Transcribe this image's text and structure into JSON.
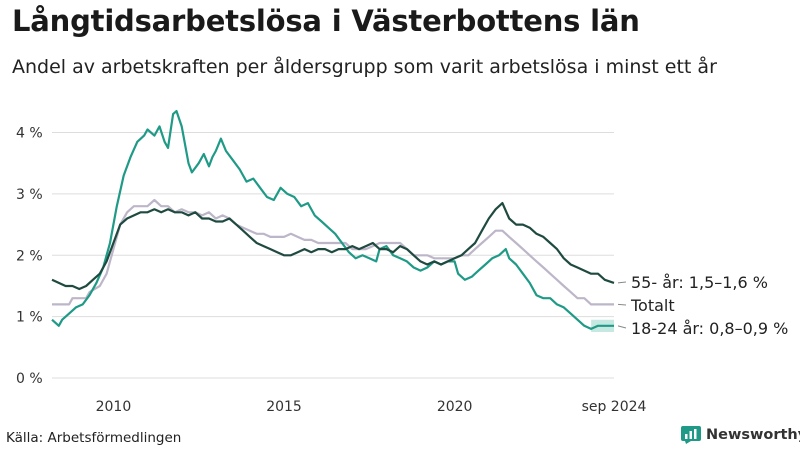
{
  "title": "Långtidsarbetslösa i Västerbottens län",
  "subtitle": "Andel av arbetskraften per åldersgrupp som varit arbetslösa i minst ett år",
  "source": "Källa: Arbetsförmedlingen",
  "brand": "Newsworthy",
  "colors": {
    "older": "#1f4a40",
    "total": "#bdb6c8",
    "young": "#1e9a86",
    "young_band": "#9fd8cd",
    "grid": "#dddddd",
    "brand": "#1e9a86"
  },
  "chart_data": {
    "type": "line",
    "x_unit": "year",
    "xlim": [
      2008.2,
      2024.67
    ],
    "ylim": [
      0,
      4.4
    ],
    "yticks": [
      0,
      1,
      2,
      3,
      4
    ],
    "ytick_labels": [
      "0 %",
      "1 %",
      "2 %",
      "3 %",
      "4 %"
    ],
    "xticks": [
      2010,
      2015,
      2020,
      2024.67
    ],
    "xtick_labels": [
      "2010",
      "2015",
      "2020",
      "sep 2024"
    ],
    "grid": true,
    "series": [
      {
        "key": "older",
        "end_label": "55- år: 1,5–1,6 %",
        "points": [
          [
            2008.2,
            1.6
          ],
          [
            2008.4,
            1.55
          ],
          [
            2008.6,
            1.5
          ],
          [
            2008.8,
            1.5
          ],
          [
            2009.0,
            1.45
          ],
          [
            2009.2,
            1.5
          ],
          [
            2009.4,
            1.6
          ],
          [
            2009.6,
            1.7
          ],
          [
            2009.8,
            1.9
          ],
          [
            2010.0,
            2.2
          ],
          [
            2010.2,
            2.5
          ],
          [
            2010.4,
            2.6
          ],
          [
            2010.6,
            2.65
          ],
          [
            2010.8,
            2.7
          ],
          [
            2011.0,
            2.7
          ],
          [
            2011.2,
            2.75
          ],
          [
            2011.4,
            2.7
          ],
          [
            2011.6,
            2.75
          ],
          [
            2011.8,
            2.7
          ],
          [
            2012.0,
            2.7
          ],
          [
            2012.2,
            2.65
          ],
          [
            2012.4,
            2.7
          ],
          [
            2012.6,
            2.6
          ],
          [
            2012.8,
            2.6
          ],
          [
            2013.0,
            2.55
          ],
          [
            2013.2,
            2.55
          ],
          [
            2013.4,
            2.6
          ],
          [
            2013.6,
            2.5
          ],
          [
            2013.8,
            2.4
          ],
          [
            2014.0,
            2.3
          ],
          [
            2014.2,
            2.2
          ],
          [
            2014.4,
            2.15
          ],
          [
            2014.6,
            2.1
          ],
          [
            2014.8,
            2.05
          ],
          [
            2015.0,
            2.0
          ],
          [
            2015.2,
            2.0
          ],
          [
            2015.4,
            2.05
          ],
          [
            2015.6,
            2.1
          ],
          [
            2015.8,
            2.05
          ],
          [
            2016.0,
            2.1
          ],
          [
            2016.2,
            2.1
          ],
          [
            2016.4,
            2.05
          ],
          [
            2016.6,
            2.1
          ],
          [
            2016.8,
            2.1
          ],
          [
            2017.0,
            2.15
          ],
          [
            2017.2,
            2.1
          ],
          [
            2017.4,
            2.15
          ],
          [
            2017.6,
            2.2
          ],
          [
            2017.8,
            2.1
          ],
          [
            2018.0,
            2.1
          ],
          [
            2018.2,
            2.05
          ],
          [
            2018.4,
            2.15
          ],
          [
            2018.6,
            2.1
          ],
          [
            2018.8,
            2.0
          ],
          [
            2019.0,
            1.9
          ],
          [
            2019.2,
            1.85
          ],
          [
            2019.4,
            1.9
          ],
          [
            2019.6,
            1.85
          ],
          [
            2019.8,
            1.9
          ],
          [
            2020.0,
            1.95
          ],
          [
            2020.2,
            2.0
          ],
          [
            2020.4,
            2.1
          ],
          [
            2020.6,
            2.2
          ],
          [
            2020.8,
            2.4
          ],
          [
            2021.0,
            2.6
          ],
          [
            2021.2,
            2.75
          ],
          [
            2021.4,
            2.85
          ],
          [
            2021.6,
            2.6
          ],
          [
            2021.8,
            2.5
          ],
          [
            2022.0,
            2.5
          ],
          [
            2022.2,
            2.45
          ],
          [
            2022.4,
            2.35
          ],
          [
            2022.6,
            2.3
          ],
          [
            2022.8,
            2.2
          ],
          [
            2023.0,
            2.1
          ],
          [
            2023.2,
            1.95
          ],
          [
            2023.4,
            1.85
          ],
          [
            2023.6,
            1.8
          ],
          [
            2023.8,
            1.75
          ],
          [
            2024.0,
            1.7
          ],
          [
            2024.2,
            1.7
          ],
          [
            2024.4,
            1.6
          ],
          [
            2024.67,
            1.55
          ]
        ]
      },
      {
        "key": "total",
        "end_label": "Totalt",
        "points": [
          [
            2008.2,
            1.2
          ],
          [
            2008.7,
            1.2
          ],
          [
            2008.8,
            1.3
          ],
          [
            2009.2,
            1.3
          ],
          [
            2009.3,
            1.4
          ],
          [
            2009.6,
            1.5
          ],
          [
            2009.8,
            1.7
          ],
          [
            2010.0,
            2.1
          ],
          [
            2010.2,
            2.5
          ],
          [
            2010.4,
            2.7
          ],
          [
            2010.6,
            2.8
          ],
          [
            2011.0,
            2.8
          ],
          [
            2011.2,
            2.9
          ],
          [
            2011.4,
            2.8
          ],
          [
            2011.6,
            2.8
          ],
          [
            2011.8,
            2.7
          ],
          [
            2012.0,
            2.75
          ],
          [
            2012.2,
            2.7
          ],
          [
            2012.4,
            2.7
          ],
          [
            2012.6,
            2.65
          ],
          [
            2012.8,
            2.7
          ],
          [
            2013.0,
            2.6
          ],
          [
            2013.2,
            2.65
          ],
          [
            2013.4,
            2.6
          ],
          [
            2013.6,
            2.5
          ],
          [
            2013.8,
            2.45
          ],
          [
            2014.0,
            2.4
          ],
          [
            2014.2,
            2.35
          ],
          [
            2014.4,
            2.35
          ],
          [
            2014.6,
            2.3
          ],
          [
            2014.8,
            2.3
          ],
          [
            2015.0,
            2.3
          ],
          [
            2015.2,
            2.35
          ],
          [
            2015.4,
            2.3
          ],
          [
            2015.6,
            2.25
          ],
          [
            2015.8,
            2.25
          ],
          [
            2016.0,
            2.2
          ],
          [
            2016.2,
            2.2
          ],
          [
            2016.4,
            2.2
          ],
          [
            2016.6,
            2.2
          ],
          [
            2016.8,
            2.2
          ],
          [
            2017.0,
            2.1
          ],
          [
            2017.2,
            2.1
          ],
          [
            2017.4,
            2.1
          ],
          [
            2017.6,
            2.15
          ],
          [
            2017.8,
            2.2
          ],
          [
            2018.0,
            2.2
          ],
          [
            2018.2,
            2.2
          ],
          [
            2018.4,
            2.2
          ],
          [
            2018.6,
            2.1
          ],
          [
            2018.8,
            2.0
          ],
          [
            2019.0,
            2.0
          ],
          [
            2019.2,
            2.0
          ],
          [
            2019.4,
            1.95
          ],
          [
            2019.6,
            1.95
          ],
          [
            2019.8,
            1.95
          ],
          [
            2020.0,
            1.95
          ],
          [
            2020.2,
            2.0
          ],
          [
            2020.4,
            2.0
          ],
          [
            2020.6,
            2.1
          ],
          [
            2020.8,
            2.2
          ],
          [
            2021.0,
            2.3
          ],
          [
            2021.2,
            2.4
          ],
          [
            2021.4,
            2.4
          ],
          [
            2021.6,
            2.3
          ],
          [
            2021.8,
            2.2
          ],
          [
            2022.0,
            2.1
          ],
          [
            2022.2,
            2.0
          ],
          [
            2022.4,
            1.9
          ],
          [
            2022.6,
            1.8
          ],
          [
            2022.8,
            1.7
          ],
          [
            2023.0,
            1.6
          ],
          [
            2023.2,
            1.5
          ],
          [
            2023.4,
            1.4
          ],
          [
            2023.6,
            1.3
          ],
          [
            2023.8,
            1.3
          ],
          [
            2024.0,
            1.2
          ],
          [
            2024.2,
            1.2
          ],
          [
            2024.67,
            1.2
          ]
        ]
      },
      {
        "key": "young",
        "end_label": "18-24 år: 0,8–0,9 %",
        "band": [
          0.75,
          0.95
        ],
        "band_from": 2023.85,
        "points": [
          [
            2008.2,
            0.95
          ],
          [
            2008.4,
            0.85
          ],
          [
            2008.5,
            0.95
          ],
          [
            2008.7,
            1.05
          ],
          [
            2008.9,
            1.15
          ],
          [
            2009.1,
            1.2
          ],
          [
            2009.3,
            1.35
          ],
          [
            2009.5,
            1.55
          ],
          [
            2009.7,
            1.8
          ],
          [
            2009.9,
            2.2
          ],
          [
            2010.1,
            2.8
          ],
          [
            2010.3,
            3.3
          ],
          [
            2010.5,
            3.6
          ],
          [
            2010.7,
            3.85
          ],
          [
            2010.9,
            3.95
          ],
          [
            2011.0,
            4.05
          ],
          [
            2011.2,
            3.95
          ],
          [
            2011.35,
            4.1
          ],
          [
            2011.5,
            3.85
          ],
          [
            2011.6,
            3.75
          ],
          [
            2011.75,
            4.3
          ],
          [
            2011.85,
            4.35
          ],
          [
            2012.0,
            4.1
          ],
          [
            2012.2,
            3.5
          ],
          [
            2012.3,
            3.35
          ],
          [
            2012.5,
            3.5
          ],
          [
            2012.65,
            3.65
          ],
          [
            2012.8,
            3.45
          ],
          [
            2012.9,
            3.6
          ],
          [
            2013.0,
            3.7
          ],
          [
            2013.15,
            3.9
          ],
          [
            2013.3,
            3.7
          ],
          [
            2013.5,
            3.55
          ],
          [
            2013.7,
            3.4
          ],
          [
            2013.9,
            3.2
          ],
          [
            2014.1,
            3.25
          ],
          [
            2014.3,
            3.1
          ],
          [
            2014.5,
            2.95
          ],
          [
            2014.7,
            2.9
          ],
          [
            2014.9,
            3.1
          ],
          [
            2015.1,
            3.0
          ],
          [
            2015.3,
            2.95
          ],
          [
            2015.5,
            2.8
          ],
          [
            2015.7,
            2.85
          ],
          [
            2015.9,
            2.65
          ],
          [
            2016.1,
            2.55
          ],
          [
            2016.3,
            2.45
          ],
          [
            2016.5,
            2.35
          ],
          [
            2016.7,
            2.2
          ],
          [
            2016.9,
            2.05
          ],
          [
            2017.1,
            1.95
          ],
          [
            2017.3,
            2.0
          ],
          [
            2017.5,
            1.95
          ],
          [
            2017.7,
            1.9
          ],
          [
            2017.8,
            2.1
          ],
          [
            2018.0,
            2.15
          ],
          [
            2018.2,
            2.0
          ],
          [
            2018.4,
            1.95
          ],
          [
            2018.6,
            1.9
          ],
          [
            2018.8,
            1.8
          ],
          [
            2019.0,
            1.75
          ],
          [
            2019.2,
            1.8
          ],
          [
            2019.4,
            1.9
          ],
          [
            2019.6,
            1.85
          ],
          [
            2019.8,
            1.9
          ],
          [
            2020.0,
            1.9
          ],
          [
            2020.1,
            1.7
          ],
          [
            2020.3,
            1.6
          ],
          [
            2020.5,
            1.65
          ],
          [
            2020.7,
            1.75
          ],
          [
            2020.9,
            1.85
          ],
          [
            2021.1,
            1.95
          ],
          [
            2021.3,
            2.0
          ],
          [
            2021.5,
            2.1
          ],
          [
            2021.6,
            1.95
          ],
          [
            2021.8,
            1.85
          ],
          [
            2022.0,
            1.7
          ],
          [
            2022.2,
            1.55
          ],
          [
            2022.4,
            1.35
          ],
          [
            2022.6,
            1.3
          ],
          [
            2022.8,
            1.3
          ],
          [
            2023.0,
            1.2
          ],
          [
            2023.2,
            1.15
          ],
          [
            2023.4,
            1.05
          ],
          [
            2023.6,
            0.95
          ],
          [
            2023.8,
            0.85
          ],
          [
            2024.0,
            0.8
          ],
          [
            2024.2,
            0.85
          ],
          [
            2024.4,
            0.85
          ],
          [
            2024.67,
            0.85
          ]
        ]
      }
    ]
  }
}
